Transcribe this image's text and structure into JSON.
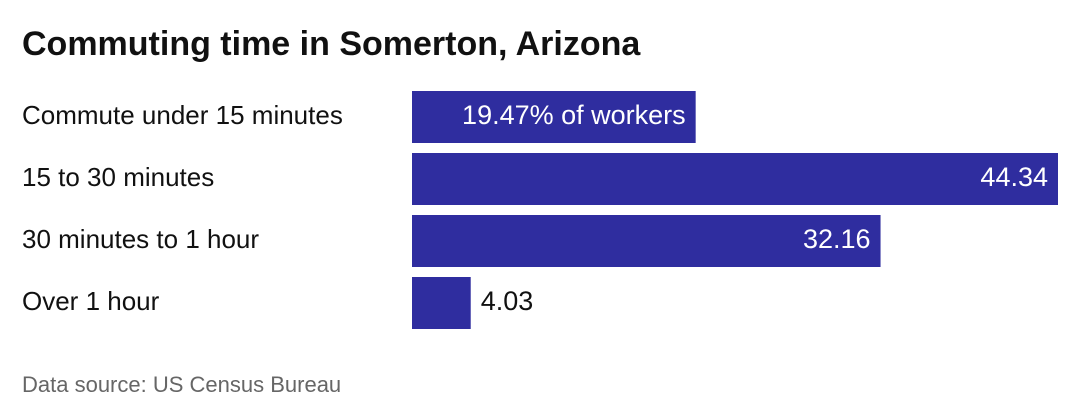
{
  "chart_data": {
    "type": "bar",
    "orientation": "horizontal",
    "title": "Commuting time in Somerton, Arizona",
    "categories": [
      "Commute under 15 minutes",
      "15 to 30 minutes",
      "30 minutes to 1 hour",
      "Over 1 hour"
    ],
    "values": [
      19.47,
      44.34,
      32.16,
      4.03
    ],
    "value_labels": [
      "19.47% of workers",
      "44.34",
      "32.16",
      "4.03"
    ],
    "color": "#2f2d9f",
    "source": "Data source: US Census Bureau"
  }
}
